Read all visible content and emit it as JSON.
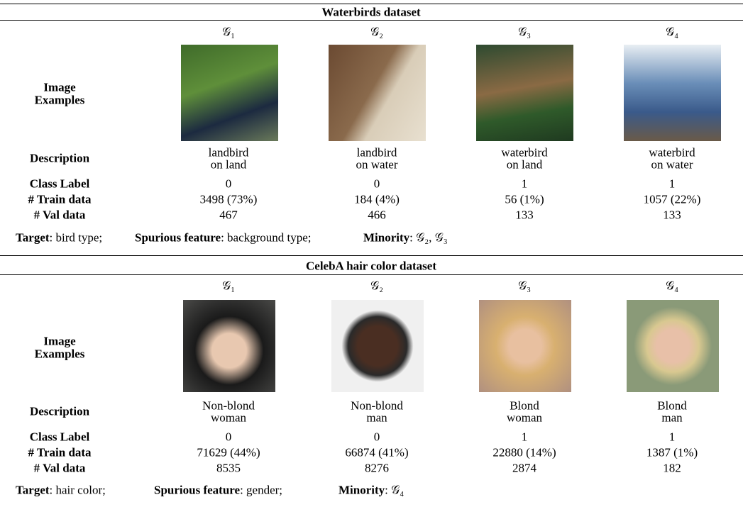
{
  "sections": [
    {
      "title": "Waterbirds dataset",
      "groups": [
        "𝒢₁",
        "𝒢₂",
        "𝒢₃",
        "𝒢₄"
      ],
      "image_label": [
        "Image",
        "Examples"
      ],
      "description": {
        "label": "Description",
        "values": [
          [
            "landbird",
            "on land"
          ],
          [
            "landbird",
            "on water"
          ],
          [
            "waterbird",
            "on land"
          ],
          [
            "waterbird",
            "on water"
          ]
        ]
      },
      "class_label": {
        "label": "Class Label",
        "values": [
          0,
          0,
          1,
          1
        ]
      },
      "train": {
        "label": "# Train data",
        "values": [
          "3498 (73%)",
          "184 (4%)",
          "56 (1%)",
          "1057 (22%)"
        ]
      },
      "val": {
        "label": "# Val data",
        "values": [
          467,
          466,
          133,
          133
        ]
      },
      "footer": [
        {
          "label": "Target",
          "text": ": bird type;"
        },
        {
          "label": "Spurious feature",
          "text": ": background type;"
        },
        {
          "label": "Minority",
          "text": ": 𝒢₂, 𝒢₃"
        }
      ]
    },
    {
      "title": "CelebA hair color dataset",
      "groups": [
        "𝒢₁",
        "𝒢₂",
        "𝒢₃",
        "𝒢₄"
      ],
      "image_label": [
        "Image",
        "Examples"
      ],
      "description": {
        "label": "Description",
        "values": [
          [
            "Non-blond",
            "woman"
          ],
          [
            "Non-blond",
            "man"
          ],
          [
            "Blond",
            "woman"
          ],
          [
            "Blond",
            "man"
          ]
        ]
      },
      "class_label": {
        "label": "Class Label",
        "values": [
          0,
          0,
          1,
          1
        ]
      },
      "train": {
        "label": "# Train data",
        "values": [
          "71629 (44%)",
          "66874 (41%)",
          "22880 (14%)",
          "1387 (1%)"
        ]
      },
      "val": {
        "label": "# Val data",
        "values": [
          8535,
          8276,
          2874,
          182
        ]
      },
      "footer": [
        {
          "label": "Target",
          "text": ": hair color;"
        },
        {
          "label": "Spurious feature",
          "text": ": gender;"
        },
        {
          "label": "Minority",
          "text": ": 𝒢₄"
        }
      ]
    }
  ]
}
